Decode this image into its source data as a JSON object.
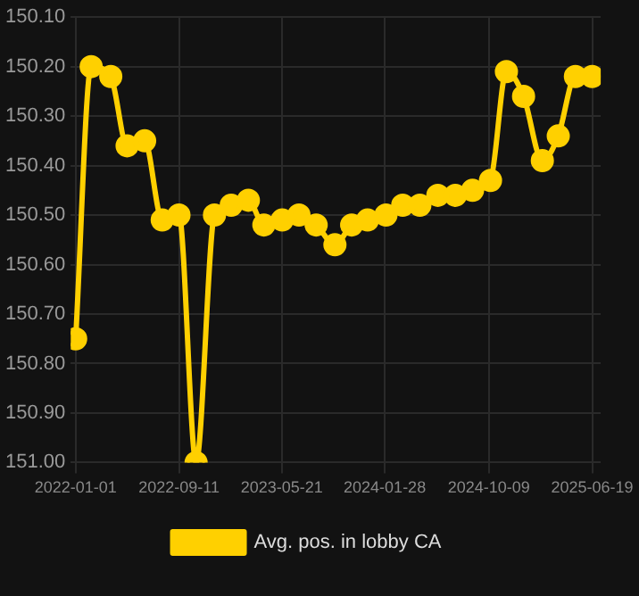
{
  "chart_data": {
    "type": "line",
    "x": [
      "2022-01-01",
      "2022-02-08",
      "2022-03-28",
      "2022-05-07",
      "2022-06-19",
      "2022-08-01",
      "2022-09-11",
      "2022-10-23",
      "2022-12-07",
      "2023-01-17",
      "2023-02-28",
      "2023-04-07",
      "2023-05-22",
      "2023-07-02",
      "2023-08-13",
      "2023-09-28",
      "2023-11-08",
      "2023-12-17",
      "2024-01-31",
      "2024-03-12",
      "2024-04-23",
      "2024-06-06",
      "2024-07-19",
      "2024-08-30",
      "2024-10-13",
      "2024-11-21",
      "2025-01-02",
      "2025-02-17",
      "2025-03-28",
      "2025-05-09",
      "2025-06-19"
    ],
    "series": [
      {
        "name": "Avg. pos. in lobby CA",
        "color": "#ffd000",
        "values": [
          150.75,
          150.2,
          150.22,
          150.36,
          150.35,
          150.51,
          150.5,
          151.0,
          150.5,
          150.48,
          150.47,
          150.52,
          150.51,
          150.5,
          150.52,
          150.56,
          150.52,
          150.51,
          150.5,
          150.48,
          150.48,
          150.46,
          150.46,
          150.45,
          150.43,
          150.21,
          150.26,
          150.39,
          150.34,
          150.22,
          150.22
        ]
      }
    ],
    "ylim": [
      151.0,
      150.1
    ],
    "yticks": [
      {
        "value": 150.1,
        "label": "150.10"
      },
      {
        "value": 150.2,
        "label": "150.20"
      },
      {
        "value": 150.3,
        "label": "150.30"
      },
      {
        "value": 150.4,
        "label": "150.40"
      },
      {
        "value": 150.5,
        "label": "150.50"
      },
      {
        "value": 150.6,
        "label": "150.60"
      },
      {
        "value": 150.7,
        "label": "150.70"
      },
      {
        "value": 150.8,
        "label": "150.80"
      },
      {
        "value": 150.9,
        "label": "150.90"
      },
      {
        "value": 151.0,
        "label": "151.00"
      }
    ],
    "xlim": [
      "2021-12-20",
      "2025-07-10"
    ],
    "xticks": [
      "2022-01-01",
      "2022-09-11",
      "2023-05-21",
      "2024-01-28",
      "2024-10-09",
      "2025-06-19"
    ],
    "grid": true,
    "legend": "bottom",
    "marker": "circle",
    "line_style": "solid"
  }
}
